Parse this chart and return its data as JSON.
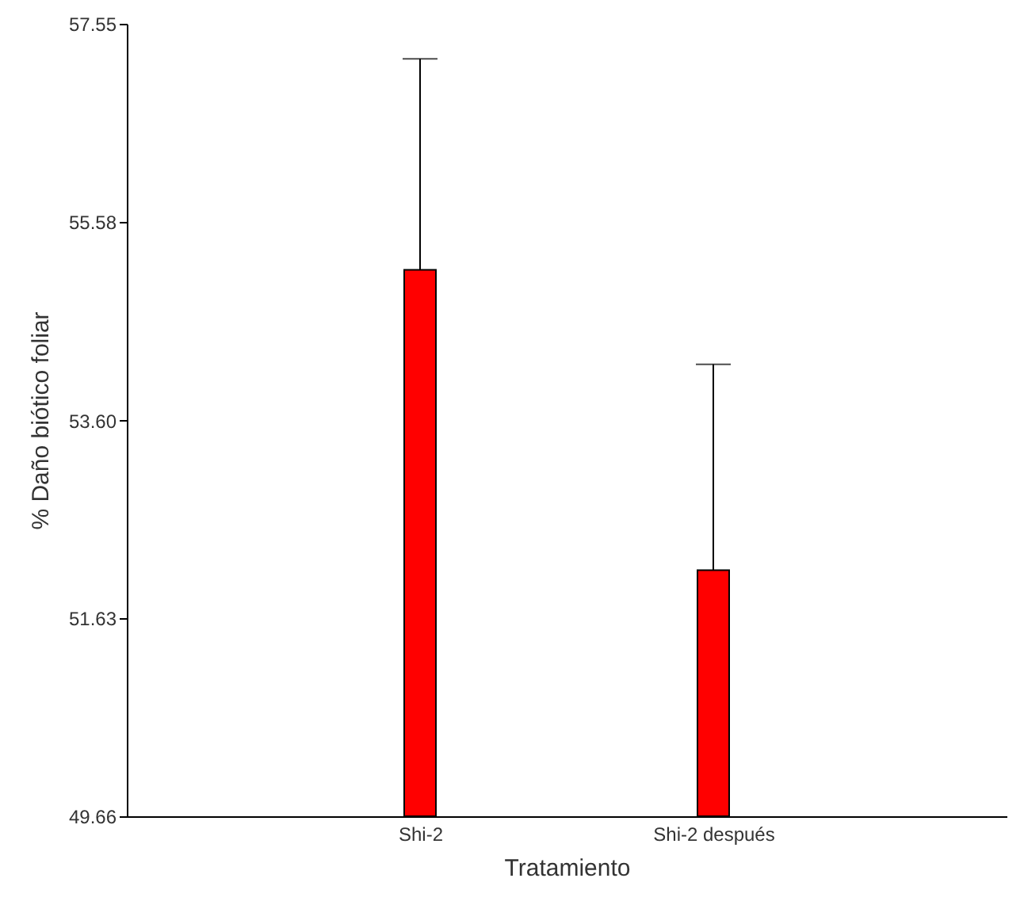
{
  "chart_data": {
    "type": "bar",
    "xlabel": "Tratamiento",
    "ylabel": "% Daño biótico foliar",
    "categories": [
      "Shi-2",
      "Shi-2 después"
    ],
    "values": [
      55.1,
      52.11
    ],
    "errors": [
      [
        55.1,
        57.2
      ],
      [
        52.11,
        54.16
      ]
    ],
    "color": "#ff0000",
    "ylim": [
      49.66,
      57.55
    ],
    "yticks": [
      49.66,
      51.63,
      {
        "value": 53.6,
        "label": "53.60"
      },
      55.58,
      57.55
    ],
    "grid": false
  }
}
